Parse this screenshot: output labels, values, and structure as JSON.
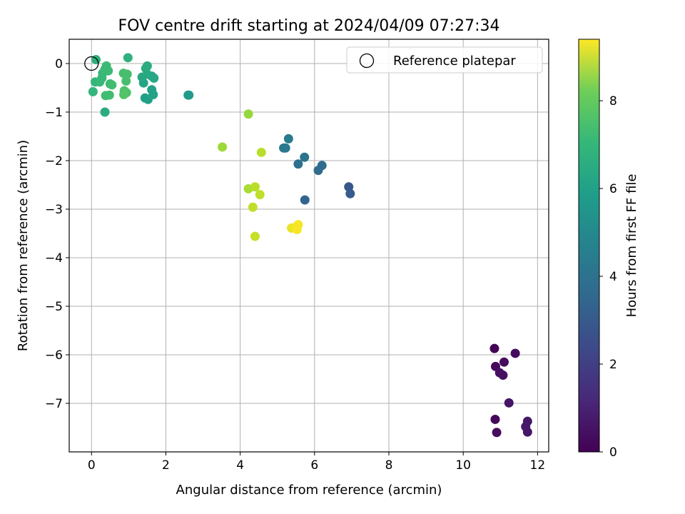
{
  "chart_data": {
    "type": "scatter",
    "title": "FOV centre drift starting at 2024/04/09 07:27:34",
    "xlabel": "Angular distance from reference (arcmin)",
    "ylabel": "Rotation from reference (arcmin)",
    "xlim": [
      -0.6,
      12.3
    ],
    "ylim": [
      -8.0,
      0.5
    ],
    "xticks": [
      0,
      2,
      4,
      6,
      8,
      10,
      12
    ],
    "yticks": [
      0,
      -1,
      -2,
      -3,
      -4,
      -5,
      -6,
      -7
    ],
    "grid": true,
    "legend": {
      "position": "top-right",
      "entries": [
        "Reference platepar"
      ]
    },
    "reference_point": {
      "x": 0,
      "y": 0
    },
    "colorbar": {
      "label": "Hours from first FF file",
      "range": [
        0,
        9.4
      ],
      "ticks": [
        0,
        2,
        4,
        6,
        8
      ],
      "colormap": "viridis"
    },
    "points": [
      {
        "x": 10.84,
        "y": -5.87,
        "c": 0.1
      },
      {
        "x": 11.4,
        "y": -5.97,
        "c": 0.3
      },
      {
        "x": 10.87,
        "y": -6.24,
        "c": 0.2
      },
      {
        "x": 11.1,
        "y": -6.15,
        "c": 0.3
      },
      {
        "x": 10.98,
        "y": -6.37,
        "c": 0.4
      },
      {
        "x": 11.07,
        "y": -6.42,
        "c": 0.4
      },
      {
        "x": 11.23,
        "y": -6.99,
        "c": 0.5
      },
      {
        "x": 10.86,
        "y": -7.33,
        "c": 0.2
      },
      {
        "x": 11.73,
        "y": -7.37,
        "c": 0.6
      },
      {
        "x": 11.68,
        "y": -7.48,
        "c": 0.6
      },
      {
        "x": 10.9,
        "y": -7.6,
        "c": 0.3
      },
      {
        "x": 11.73,
        "y": -7.59,
        "c": 0.6
      },
      {
        "x": 6.92,
        "y": -2.54,
        "c": 2.6
      },
      {
        "x": 6.96,
        "y": -2.68,
        "c": 2.7
      },
      {
        "x": 5.74,
        "y": -2.81,
        "c": 3.0
      },
      {
        "x": 6.2,
        "y": -2.1,
        "c": 3.3
      },
      {
        "x": 6.1,
        "y": -2.2,
        "c": 3.3
      },
      {
        "x": 5.56,
        "y": -2.07,
        "c": 3.4
      },
      {
        "x": 5.73,
        "y": -1.93,
        "c": 3.6
      },
      {
        "x": 5.17,
        "y": -1.74,
        "c": 3.8
      },
      {
        "x": 5.22,
        "y": -1.74,
        "c": 3.8
      },
      {
        "x": 5.3,
        "y": -1.55,
        "c": 3.9
      },
      {
        "x": 2.6,
        "y": -0.65,
        "c": 5.0
      },
      {
        "x": 2.62,
        "y": -0.65,
        "c": 5.1
      },
      {
        "x": 1.44,
        "y": -0.71,
        "c": 5.3
      },
      {
        "x": 1.52,
        "y": -0.74,
        "c": 5.3
      },
      {
        "x": 1.66,
        "y": -0.64,
        "c": 5.4
      },
      {
        "x": 1.62,
        "y": -0.54,
        "c": 5.4
      },
      {
        "x": 1.4,
        "y": -0.4,
        "c": 5.5
      },
      {
        "x": 1.36,
        "y": -0.28,
        "c": 5.6
      },
      {
        "x": 1.62,
        "y": -0.26,
        "c": 5.6
      },
      {
        "x": 1.68,
        "y": -0.3,
        "c": 5.6
      },
      {
        "x": 1.5,
        "y": -0.22,
        "c": 5.7
      },
      {
        "x": 1.46,
        "y": -0.1,
        "c": 5.7
      },
      {
        "x": 1.5,
        "y": -0.05,
        "c": 5.8
      },
      {
        "x": 0.36,
        "y": -1.0,
        "c": 5.8
      },
      {
        "x": 0.98,
        "y": 0.12,
        "c": 6.0
      },
      {
        "x": 0.12,
        "y": 0.08,
        "c": 6.0
      },
      {
        "x": 0.04,
        "y": -0.58,
        "c": 6.2
      },
      {
        "x": 0.1,
        "y": -0.38,
        "c": 6.2
      },
      {
        "x": 0.22,
        "y": -0.38,
        "c": 6.3
      },
      {
        "x": 0.28,
        "y": -0.3,
        "c": 6.3
      },
      {
        "x": 0.3,
        "y": -0.2,
        "c": 6.3
      },
      {
        "x": 0.36,
        "y": -0.12,
        "c": 6.4
      },
      {
        "x": 0.4,
        "y": -0.05,
        "c": 6.4
      },
      {
        "x": 0.45,
        "y": -0.15,
        "c": 6.4
      },
      {
        "x": 0.5,
        "y": -0.42,
        "c": 6.4
      },
      {
        "x": 0.55,
        "y": -0.44,
        "c": 6.5
      },
      {
        "x": 0.38,
        "y": -0.66,
        "c": 6.5
      },
      {
        "x": 0.48,
        "y": -0.65,
        "c": 6.5
      },
      {
        "x": 0.86,
        "y": -0.2,
        "c": 6.6
      },
      {
        "x": 0.96,
        "y": -0.22,
        "c": 6.6
      },
      {
        "x": 0.93,
        "y": -0.36,
        "c": 6.6
      },
      {
        "x": 0.88,
        "y": -0.56,
        "c": 6.7
      },
      {
        "x": 0.94,
        "y": -0.6,
        "c": 6.7
      },
      {
        "x": 0.87,
        "y": -0.64,
        "c": 6.8
      },
      {
        "x": 3.52,
        "y": -1.72,
        "c": 8.0
      },
      {
        "x": 4.22,
        "y": -1.04,
        "c": 7.9
      },
      {
        "x": 4.57,
        "y": -1.83,
        "c": 8.4
      },
      {
        "x": 4.22,
        "y": -2.58,
        "c": 8.2
      },
      {
        "x": 4.4,
        "y": -2.54,
        "c": 8.4
      },
      {
        "x": 4.53,
        "y": -2.7,
        "c": 8.5
      },
      {
        "x": 4.34,
        "y": -2.96,
        "c": 8.5
      },
      {
        "x": 4.4,
        "y": -3.56,
        "c": 8.6
      },
      {
        "x": 5.38,
        "y": -3.39,
        "c": 9.1
      },
      {
        "x": 5.46,
        "y": -3.38,
        "c": 9.2
      },
      {
        "x": 5.53,
        "y": -3.42,
        "c": 9.3
      },
      {
        "x": 5.56,
        "y": -3.32,
        "c": 9.3
      }
    ]
  }
}
